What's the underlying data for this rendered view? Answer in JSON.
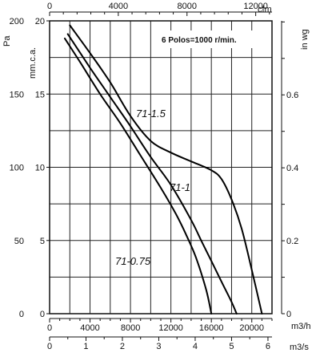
{
  "chart_data": {
    "type": "line",
    "title": "",
    "annotation": "6 Polos=1000 r/min.",
    "x_m3h": {
      "label": "m3/h",
      "ticks": [
        "0",
        "4000",
        "8000",
        "12000",
        "16000",
        "20000"
      ],
      "range": [
        0,
        22000
      ]
    },
    "x_m3s": {
      "label": "m3/s",
      "ticks": [
        "0",
        "1",
        "2",
        "3",
        "4",
        "5",
        "6"
      ]
    },
    "x_cfm": {
      "label": "cfm",
      "ticks": [
        "0",
        "4000",
        "8000",
        "12000"
      ]
    },
    "y_pa": {
      "label": "Pa",
      "ticks": [
        "0",
        "50",
        "100",
        "150",
        "200"
      ],
      "range": [
        0,
        200
      ]
    },
    "y_mmca": {
      "label": "mm.c.a.",
      "ticks": [
        "0",
        "5",
        "10",
        "15",
        "20"
      ]
    },
    "y_inwg": {
      "label": "in wg",
      "ticks": [
        "0",
        "0.2",
        "0.4",
        "0.6"
      ]
    },
    "grid": true,
    "series": [
      {
        "name": "71-1.5",
        "x": [
          2000,
          4000,
          6000,
          8000,
          10000,
          12000,
          14000,
          16000,
          17000,
          18000,
          19000,
          20000,
          21000
        ],
        "y": [
          197,
          178,
          158,
          135,
          118,
          110,
          104,
          98,
          92,
          78,
          58,
          30,
          0
        ]
      },
      {
        "name": "71-1",
        "x": [
          1800,
          4000,
          6000,
          8000,
          10000,
          12000,
          14000,
          15000,
          16000,
          17000,
          18000,
          18500
        ],
        "y": [
          191,
          168,
          148,
          128,
          107,
          88,
          64,
          50,
          36,
          22,
          8,
          0
        ]
      },
      {
        "name": "71-0.75",
        "x": [
          1500,
          3000,
          5000,
          7000,
          9000,
          11000,
          12500,
          13500,
          14500,
          15500,
          16000
        ],
        "y": [
          188,
          172,
          150,
          130,
          108,
          86,
          68,
          54,
          38,
          16,
          0
        ]
      }
    ]
  }
}
